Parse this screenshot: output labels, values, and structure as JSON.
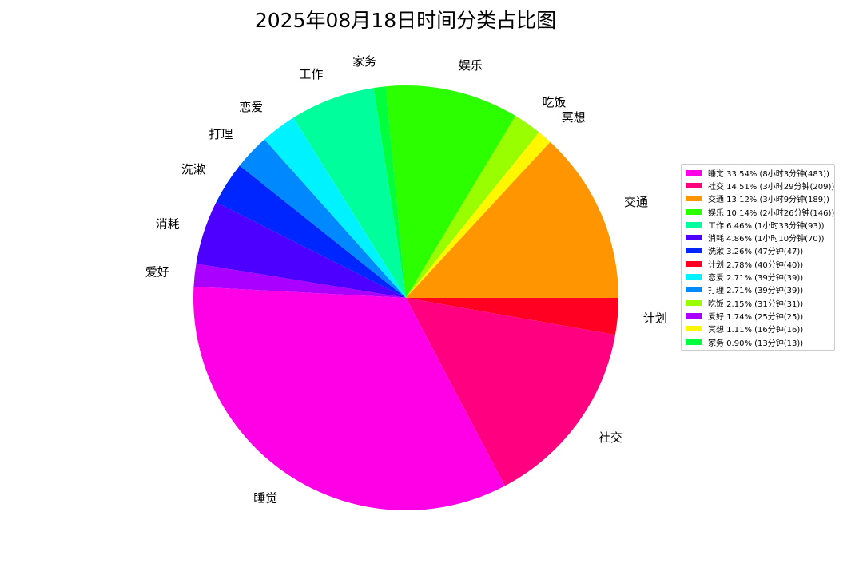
{
  "chart_data": {
    "type": "pie",
    "title": "2025年08月18日时间分类占比图",
    "start_angle_deg": 0,
    "direction": "clockwise",
    "legend_position": "right",
    "slices": [
      {
        "label": "睡觉",
        "percent": 33.54,
        "legend": "睡觉 33.54% (8小时3分钟(483))",
        "color": "#ff00e6"
      },
      {
        "label": "社交",
        "percent": 14.51,
        "legend": "社交 14.51% (3小时29分钟(209))",
        "color": "#ff0080"
      },
      {
        "label": "交通",
        "percent": 13.12,
        "legend": "交通 13.12% (3小时9分钟(189))",
        "color": "#ff9500"
      },
      {
        "label": "娱乐",
        "percent": 10.14,
        "legend": "娱乐 10.14% (2小时26分钟(146))",
        "color": "#2bff00"
      },
      {
        "label": "工作",
        "percent": 6.46,
        "legend": "工作 6.46% (1小时33分钟(93))",
        "color": "#00ff9c"
      },
      {
        "label": "消耗",
        "percent": 4.86,
        "legend": "消耗 4.86% (1小时10分钟(70))",
        "color": "#4d00ff"
      },
      {
        "label": "洗漱",
        "percent": 3.26,
        "legend": "洗漱 3.26% (47分钟(47))",
        "color": "#0026ff"
      },
      {
        "label": "计划",
        "percent": 2.78,
        "legend": "计划 2.78% (40分钟(40))",
        "color": "#ff0022"
      },
      {
        "label": "恋爱",
        "percent": 2.71,
        "legend": "恋爱 2.71% (39分钟(39))",
        "color": "#00f2ff"
      },
      {
        "label": "打理",
        "percent": 2.71,
        "legend": "打理 2.71% (39分钟(39))",
        "color": "#0088ff"
      },
      {
        "label": "吃饭",
        "percent": 2.15,
        "legend": "吃饭 2.15% (31分钟(31))",
        "color": "#99ff00"
      },
      {
        "label": "爱好",
        "percent": 1.74,
        "legend": "爱好 1.74% (25分钟(25))",
        "color": "#aa00ff"
      },
      {
        "label": "冥想",
        "percent": 1.11,
        "legend": "冥想 1.11% (16分钟(16))",
        "color": "#fff700"
      },
      {
        "label": "家务",
        "percent": 0.9,
        "legend": "家务 0.90% (13分钟(13))",
        "color": "#00ff3c"
      }
    ],
    "draw_order": [
      "计划",
      "社交",
      "睡觉",
      "爱好",
      "消耗",
      "洗漱",
      "打理",
      "恋爱",
      "工作",
      "家务",
      "娱乐",
      "吃饭",
      "冥想",
      "交通"
    ]
  }
}
